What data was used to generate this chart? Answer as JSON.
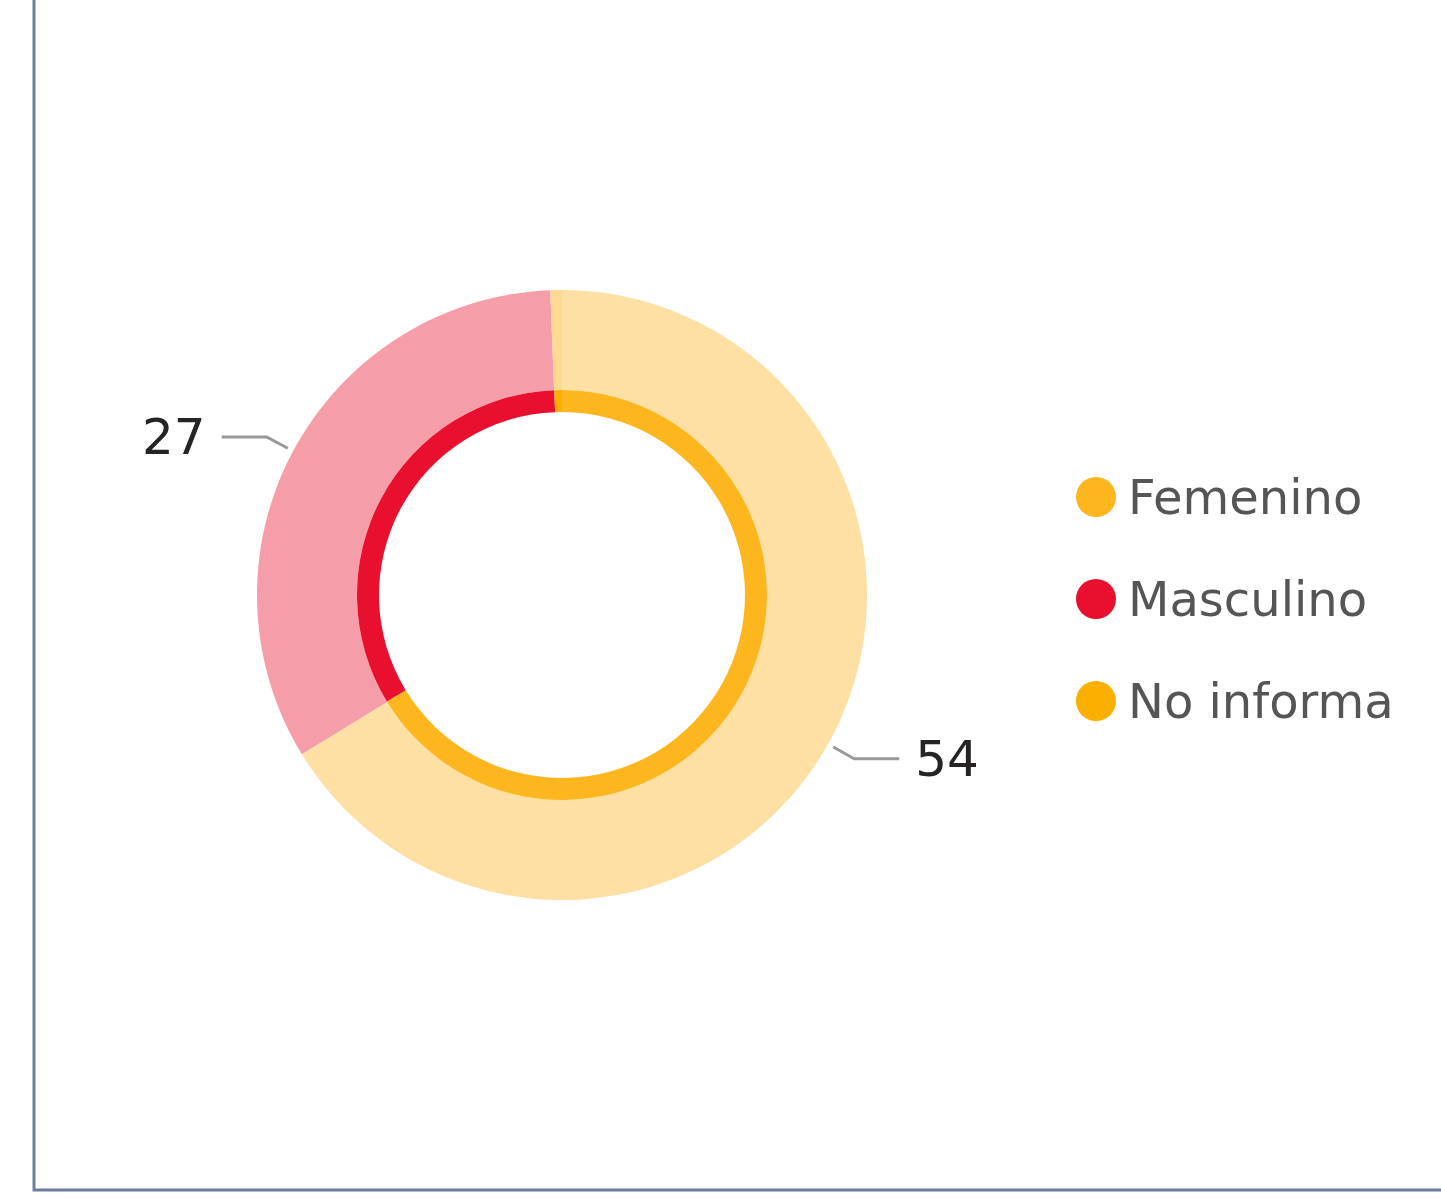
{
  "chart_data": {
    "type": "donut",
    "categories": [
      "Femenino",
      "Masculino",
      "No informa"
    ],
    "series": [
      {
        "values": [
          54,
          27,
          0.5
        ],
        "colors": [
          "#fee0a5",
          "#f59eaa",
          "#fdd994"
        ],
        "value_labels": [
          "54",
          "27",
          null
        ]
      },
      {
        "values": [
          66.3,
          33.1,
          0.6
        ],
        "colors": [
          "#fdb61e",
          "#e8102e",
          "#fbb000"
        ]
      }
    ],
    "legend": "right"
  }
}
